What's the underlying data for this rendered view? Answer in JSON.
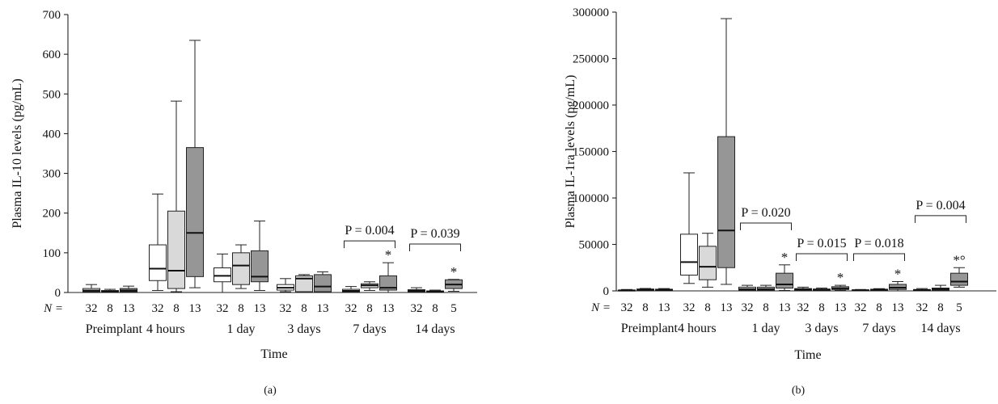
{
  "chart_data": [
    {
      "type": "box",
      "panel_label": "(a)",
      "ylabel": "Plasma IL-10 levels (pg/mL)",
      "xlabel": "Time",
      "ylim": [
        0,
        700
      ],
      "yticks": [
        0,
        100,
        200,
        300,
        400,
        500,
        600,
        700
      ],
      "n_label": "N =",
      "group_colors": [
        "#ffffff",
        "#d9d9d9",
        "#969696"
      ],
      "groups": [
        {
          "label": "Preimplant",
          "n": [
            "32",
            "8",
            "13"
          ],
          "boxes": [
            {
              "min": 0,
              "q1": 2,
              "median": 5,
              "q3": 10,
              "max": 20
            },
            {
              "min": 0,
              "q1": 1,
              "median": 2,
              "q3": 5,
              "max": 8
            },
            {
              "min": 0,
              "q1": 2,
              "median": 5,
              "q3": 10,
              "max": 16
            }
          ]
        },
        {
          "label": "4 hours",
          "n": [
            "32",
            "8",
            "13"
          ],
          "boxes": [
            {
              "min": 5,
              "q1": 30,
              "median": 60,
              "q3": 120,
              "max": 248
            },
            {
              "min": 2,
              "q1": 10,
              "median": 55,
              "q3": 205,
              "max": 482
            },
            {
              "min": 12,
              "q1": 40,
              "median": 150,
              "q3": 365,
              "max": 635
            }
          ]
        },
        {
          "label": "1 day",
          "n": [
            "32",
            "8",
            "13"
          ],
          "boxes": [
            {
              "min": 0,
              "q1": 27,
              "median": 42,
              "q3": 62,
              "max": 97
            },
            {
              "min": 10,
              "q1": 20,
              "median": 68,
              "q3": 100,
              "max": 120
            },
            {
              "min": 5,
              "q1": 27,
              "median": 40,
              "q3": 105,
              "max": 180
            }
          ]
        },
        {
          "label": "3 days",
          "n": [
            "32",
            "8",
            "13"
          ],
          "boxes": [
            {
              "min": 2,
              "q1": 6,
              "median": 12,
              "q3": 20,
              "max": 35
            },
            {
              "min": 0,
              "q1": 2,
              "median": 35,
              "q3": 42,
              "max": 45
            },
            {
              "min": 0,
              "q1": 2,
              "median": 15,
              "q3": 45,
              "max": 52
            }
          ]
        },
        {
          "label": "7 days",
          "n": [
            "32",
            "8",
            "13"
          ],
          "boxes": [
            {
              "min": 0,
              "q1": 1,
              "median": 4,
              "q3": 8,
              "max": 15
            },
            {
              "min": 5,
              "q1": 12,
              "median": 18,
              "q3": 22,
              "max": 27
            },
            {
              "min": 0,
              "q1": 6,
              "median": 12,
              "q3": 42,
              "max": 75
            }
          ]
        },
        {
          "label": "14 days",
          "n": [
            "32",
            "8",
            "5"
          ],
          "boxes": [
            {
              "min": 0,
              "q1": 1,
              "median": 4,
              "q3": 7,
              "max": 12
            },
            {
              "min": 0,
              "q1": 1,
              "median": 2,
              "q3": 4,
              "max": 6
            },
            {
              "min": 3,
              "q1": 10,
              "median": 20,
              "q3": 32,
              "max": 33
            }
          ]
        }
      ],
      "stars": [
        {
          "group": 4,
          "box": 2,
          "text": "*"
        },
        {
          "group": 5,
          "box": 2,
          "text": "*"
        }
      ],
      "brackets": [
        {
          "group": 4,
          "y": 130,
          "label": "P = 0.004"
        },
        {
          "group": 5,
          "y": 122,
          "label": "P = 0.039"
        }
      ]
    },
    {
      "type": "box",
      "panel_label": "(b)",
      "ylabel": "Plasma IL-1ra levels (pg/mL)",
      "xlabel": "Time",
      "ylim": [
        0,
        300000
      ],
      "yticks": [
        0,
        50000,
        100000,
        150000,
        200000,
        250000,
        300000
      ],
      "n_label": "N =",
      "group_colors": [
        "#ffffff",
        "#d9d9d9",
        "#969696"
      ],
      "groups": [
        {
          "label": "Preimplant",
          "n": [
            "32",
            "8",
            "13"
          ],
          "boxes": [
            {
              "min": 0,
              "q1": 200,
              "median": 500,
              "q3": 900,
              "max": 1500
            },
            {
              "min": 0,
              "q1": 500,
              "median": 1200,
              "q3": 2000,
              "max": 2600
            },
            {
              "min": 0,
              "q1": 400,
              "median": 1000,
              "q3": 1800,
              "max": 2500
            }
          ]
        },
        {
          "label": "4 hours",
          "n": [
            "32",
            "8",
            "13"
          ],
          "boxes": [
            {
              "min": 8000,
              "q1": 17000,
              "median": 31000,
              "q3": 61000,
              "max": 127000
            },
            {
              "min": 4000,
              "q1": 12000,
              "median": 26000,
              "q3": 48000,
              "max": 62000
            },
            {
              "min": 7000,
              "q1": 25000,
              "median": 65000,
              "q3": 166000,
              "max": 293000
            }
          ]
        },
        {
          "label": "1 day",
          "n": [
            "32",
            "8",
            "13"
          ],
          "boxes": [
            {
              "min": 0,
              "q1": 800,
              "median": 2000,
              "q3": 4000,
              "max": 6000
            },
            {
              "min": 0,
              "q1": 800,
              "median": 2000,
              "q3": 4000,
              "max": 6000
            },
            {
              "min": 500,
              "q1": 3000,
              "median": 7000,
              "q3": 19000,
              "max": 28000
            }
          ]
        },
        {
          "label": "3 days",
          "n": [
            "32",
            "8",
            "13"
          ],
          "boxes": [
            {
              "min": 0,
              "q1": 500,
              "median": 1500,
              "q3": 2500,
              "max": 4000
            },
            {
              "min": 0,
              "q1": 500,
              "median": 1200,
              "q3": 2000,
              "max": 3000
            },
            {
              "min": 500,
              "q1": 1500,
              "median": 2500,
              "q3": 4500,
              "max": 6000
            }
          ]
        },
        {
          "label": "7 days",
          "n": [
            "32",
            "8",
            "13"
          ],
          "boxes": [
            {
              "min": 0,
              "q1": 300,
              "median": 700,
              "q3": 1100,
              "max": 1500
            },
            {
              "min": 0,
              "q1": 500,
              "median": 1200,
              "q3": 1800,
              "max": 2400
            },
            {
              "min": 0,
              "q1": 1500,
              "median": 3500,
              "q3": 7000,
              "max": 10000
            }
          ]
        },
        {
          "label": "14 days",
          "n": [
            "32",
            "8",
            "5"
          ],
          "boxes": [
            {
              "min": 0,
              "q1": 300,
              "median": 900,
              "q3": 1500,
              "max": 2500
            },
            {
              "min": 0,
              "q1": 800,
              "median": 2000,
              "q3": 3000,
              "max": 6000
            },
            {
              "min": 4000,
              "q1": 6000,
              "median": 10000,
              "q3": 19000,
              "max": 25000
            }
          ]
        }
      ],
      "stars": [
        {
          "group": 2,
          "box": 2,
          "text": "*"
        },
        {
          "group": 3,
          "box": 2,
          "text": "*"
        },
        {
          "group": 4,
          "box": 2,
          "text": "*"
        },
        {
          "group": 5,
          "box": 2,
          "text": "*°"
        }
      ],
      "brackets": [
        {
          "group": 2,
          "y": 73000,
          "label": "P = 0.020"
        },
        {
          "group": 3,
          "y": 40000,
          "label": "P = 0.015"
        },
        {
          "group": 4,
          "y": 40000,
          "label": "P = 0.018"
        },
        {
          "group": 5,
          "y": 81000,
          "label": "P = 0.004"
        }
      ]
    }
  ]
}
